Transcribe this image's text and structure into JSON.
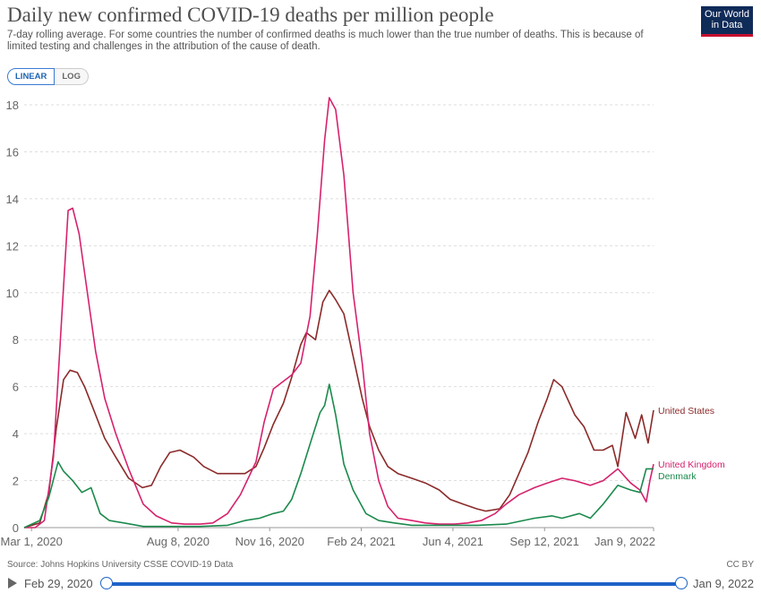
{
  "header": {
    "title": "Daily new confirmed COVID-19 deaths per million people",
    "subtitle": "7-day rolling average. For some countries the number of confirmed deaths is much lower than the true number of deaths. This is because of limited testing and challenges in the attribution of the cause of death.",
    "logo_line1": "Our World",
    "logo_line2": "in Data"
  },
  "controls": {
    "linear_label": "LINEAR",
    "log_label": "LOG"
  },
  "footer": {
    "source": "Source: Johns Hopkins University CSSE COVID-19 Data",
    "license": "CC BY"
  },
  "timeline": {
    "start_label": "Feb 29, 2020",
    "end_label": "Jan 9, 2022"
  },
  "colors": {
    "united_states": "#8b2a2a",
    "united_kingdom": "#d6226d",
    "denmark": "#1a8a4c",
    "grid": "#dddddd",
    "accent": "#1d63c8"
  },
  "chart_data": {
    "type": "line",
    "title": "Daily new confirmed COVID-19 deaths per million people",
    "xlabel": "",
    "ylabel": "",
    "ylim": [
      0,
      18
    ],
    "yticks": [
      0,
      2,
      4,
      6,
      8,
      10,
      12,
      14,
      16,
      18
    ],
    "x_tick_labels": [
      "Mar 1, 2020",
      "Aug 8, 2020",
      "Nov 16, 2020",
      "Feb 24, 2021",
      "Jun 4, 2021",
      "Sep 12, 2021",
      "Jan 9, 2022"
    ],
    "x_tick_dates": [
      "2020-03-01",
      "2020-08-08",
      "2020-11-16",
      "2021-02-24",
      "2021-06-04",
      "2021-09-12",
      "2022-01-09"
    ],
    "xlim": [
      "2020-02-22",
      "2022-01-09"
    ],
    "grid": true,
    "legend": "right end labels",
    "series": [
      {
        "name": "United States",
        "color": "#8b2a2a",
        "x": [
          "2020-02-22",
          "2020-03-10",
          "2020-03-20",
          "2020-03-28",
          "2020-04-05",
          "2020-04-12",
          "2020-04-20",
          "2020-04-28",
          "2020-05-08",
          "2020-05-20",
          "2020-06-01",
          "2020-06-15",
          "2020-06-30",
          "2020-07-10",
          "2020-07-20",
          "2020-07-30",
          "2020-08-10",
          "2020-08-25",
          "2020-09-05",
          "2020-09-20",
          "2020-10-05",
          "2020-10-20",
          "2020-11-01",
          "2020-11-10",
          "2020-11-20",
          "2020-12-01",
          "2020-12-10",
          "2020-12-20",
          "2020-12-26",
          "2021-01-05",
          "2021-01-13",
          "2021-01-20",
          "2021-01-27",
          "2021-02-05",
          "2021-02-15",
          "2021-02-25",
          "2021-03-05",
          "2021-03-15",
          "2021-03-25",
          "2021-04-05",
          "2021-04-20",
          "2021-05-05",
          "2021-05-20",
          "2021-06-01",
          "2021-06-15",
          "2021-06-30",
          "2021-07-10",
          "2021-07-25",
          "2021-08-05",
          "2021-08-15",
          "2021-08-25",
          "2021-09-05",
          "2021-09-15",
          "2021-09-22",
          "2021-10-01",
          "2021-10-15",
          "2021-10-25",
          "2021-11-05",
          "2021-11-15",
          "2021-11-25",
          "2021-12-01",
          "2021-12-10",
          "2021-12-20",
          "2021-12-27",
          "2022-01-03",
          "2022-01-09"
        ],
        "y": [
          0,
          0.2,
          1.5,
          4.2,
          6.3,
          6.7,
          6.6,
          6.0,
          5.0,
          3.8,
          3.0,
          2.1,
          1.7,
          1.8,
          2.6,
          3.2,
          3.3,
          3.0,
          2.6,
          2.3,
          2.3,
          2.3,
          2.6,
          3.4,
          4.4,
          5.3,
          6.4,
          7.8,
          8.3,
          8.0,
          9.6,
          10.1,
          9.7,
          9.1,
          7.3,
          5.5,
          4.3,
          3.3,
          2.6,
          2.3,
          2.1,
          1.9,
          1.6,
          1.2,
          1.0,
          0.8,
          0.7,
          0.8,
          1.4,
          2.3,
          3.2,
          4.5,
          5.5,
          6.3,
          6.0,
          4.8,
          4.3,
          3.3,
          3.3,
          3.5,
          2.6,
          4.9,
          3.8,
          4.8,
          3.6,
          5.0
        ]
      },
      {
        "name": "United Kingdom",
        "color": "#d6226d",
        "x": [
          "2020-02-22",
          "2020-03-05",
          "2020-03-15",
          "2020-03-25",
          "2020-04-03",
          "2020-04-10",
          "2020-04-15",
          "2020-04-22",
          "2020-05-01",
          "2020-05-10",
          "2020-05-20",
          "2020-06-01",
          "2020-06-15",
          "2020-07-01",
          "2020-07-15",
          "2020-08-01",
          "2020-08-15",
          "2020-09-01",
          "2020-09-15",
          "2020-10-01",
          "2020-10-15",
          "2020-11-01",
          "2020-11-10",
          "2020-11-20",
          "2020-11-30",
          "2020-12-10",
          "2020-12-20",
          "2020-12-30",
          "2021-01-07",
          "2021-01-15",
          "2021-01-20",
          "2021-01-27",
          "2021-02-05",
          "2021-02-15",
          "2021-02-25",
          "2021-03-05",
          "2021-03-15",
          "2021-03-25",
          "2021-04-05",
          "2021-04-20",
          "2021-05-05",
          "2021-05-20",
          "2021-06-05",
          "2021-06-20",
          "2021-07-05",
          "2021-07-20",
          "2021-08-01",
          "2021-08-15",
          "2021-09-01",
          "2021-09-15",
          "2021-10-01",
          "2021-10-15",
          "2021-11-01",
          "2021-11-15",
          "2021-12-01",
          "2021-12-15",
          "2021-12-25",
          "2022-01-01",
          "2022-01-05",
          "2022-01-09"
        ],
        "y": [
          0,
          0,
          0.3,
          3,
          9,
          13.5,
          13.6,
          12.5,
          10,
          7.5,
          5.5,
          4.0,
          2.5,
          1.0,
          0.5,
          0.2,
          0.15,
          0.15,
          0.2,
          0.6,
          1.4,
          2.8,
          4.5,
          5.9,
          6.2,
          6.5,
          7.0,
          9.0,
          12.5,
          16.5,
          18.3,
          17.8,
          15.0,
          10.0,
          7.0,
          4.0,
          2.0,
          0.9,
          0.4,
          0.3,
          0.2,
          0.15,
          0.15,
          0.2,
          0.3,
          0.6,
          1.0,
          1.4,
          1.7,
          1.9,
          2.1,
          2.0,
          1.8,
          2.0,
          2.5,
          1.9,
          1.6,
          1.1,
          2.0,
          2.7
        ]
      },
      {
        "name": "Denmark",
        "color": "#1a8a4c",
        "x": [
          "2020-02-22",
          "2020-03-10",
          "2020-03-20",
          "2020-03-30",
          "2020-04-05",
          "2020-04-15",
          "2020-04-25",
          "2020-05-05",
          "2020-05-15",
          "2020-05-25",
          "2020-06-10",
          "2020-07-01",
          "2020-08-01",
          "2020-09-01",
          "2020-10-01",
          "2020-10-20",
          "2020-11-05",
          "2020-11-20",
          "2020-12-01",
          "2020-12-10",
          "2020-12-20",
          "2021-01-01",
          "2021-01-10",
          "2021-01-15",
          "2021-01-20",
          "2021-01-27",
          "2021-02-05",
          "2021-02-15",
          "2021-03-01",
          "2021-03-15",
          "2021-04-01",
          "2021-04-20",
          "2021-05-15",
          "2021-06-01",
          "2021-07-01",
          "2021-08-01",
          "2021-09-01",
          "2021-09-20",
          "2021-10-01",
          "2021-10-20",
          "2021-11-01",
          "2021-11-15",
          "2021-12-01",
          "2021-12-15",
          "2021-12-25",
          "2022-01-01",
          "2022-01-09"
        ],
        "y": [
          0,
          0.3,
          1.3,
          2.8,
          2.4,
          2.0,
          1.5,
          1.7,
          0.6,
          0.3,
          0.2,
          0.05,
          0.05,
          0.05,
          0.1,
          0.3,
          0.4,
          0.6,
          0.7,
          1.2,
          2.3,
          3.8,
          4.9,
          5.2,
          6.1,
          4.8,
          2.7,
          1.6,
          0.6,
          0.3,
          0.2,
          0.1,
          0.1,
          0.1,
          0.1,
          0.15,
          0.4,
          0.5,
          0.4,
          0.6,
          0.4,
          1.0,
          1.8,
          1.6,
          1.5,
          2.5,
          2.5
        ]
      }
    ]
  }
}
